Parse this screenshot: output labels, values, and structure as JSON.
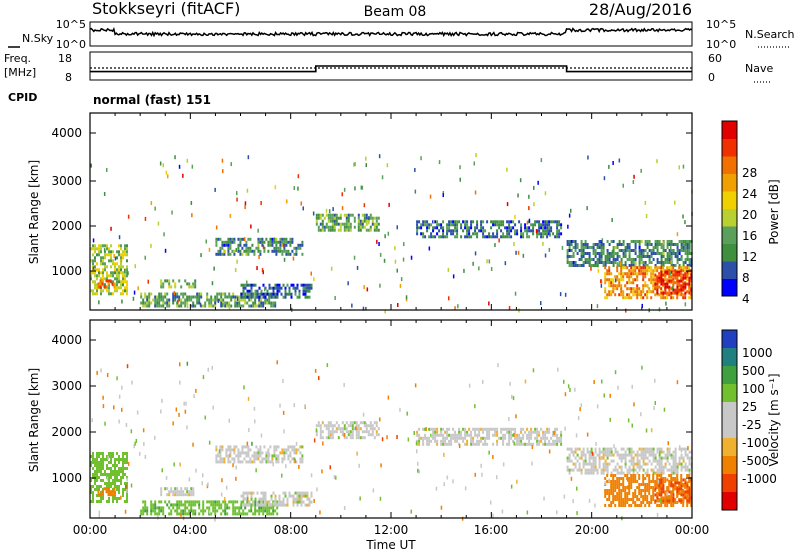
{
  "header": {
    "station": "Stokkseyri (fitACF)",
    "beam": "Beam 08",
    "date": "28/Aug/2016"
  },
  "noise_panel": {
    "left_label": "N.Sky",
    "right_label": "N.Search",
    "left_ticks": [
      "10^5",
      "10^0"
    ],
    "right_ticks": [
      "10^5",
      "10^0"
    ]
  },
  "freq_panel": {
    "left_label_line1": "Freq.",
    "left_label_line2": "[MHz]",
    "right_label": "Nave",
    "left_ticks": [
      "18",
      "8"
    ],
    "right_ticks": [
      "60",
      "0"
    ]
  },
  "cpid": {
    "label": "CPID",
    "value": "normal (fast) 151"
  },
  "x_axis": {
    "label": "Time UT",
    "ticks": [
      "00:00",
      "04:00",
      "08:00",
      "12:00",
      "16:00",
      "20:00",
      "00:00"
    ],
    "range_hours": [
      0,
      24
    ]
  },
  "power_panel": {
    "ylabel": "Slant Range [km]",
    "yticks": [
      "4000",
      "3000",
      "2000",
      "1000"
    ],
    "colorbar_label": "Power [dB]",
    "colorbar_ticks": [
      "28",
      "24",
      "20",
      "16",
      "12",
      "8",
      "4"
    ]
  },
  "velocity_panel": {
    "ylabel": "Slant Range [km]",
    "yticks": [
      "4000",
      "3000",
      "2000",
      "1000"
    ],
    "colorbar_label": "Velocity [m s⁻¹]",
    "colorbar_ticks": [
      "1000",
      "500",
      "100",
      "25",
      "-25",
      "-100",
      "-500",
      "-1000"
    ]
  },
  "colors": {
    "power_scale": [
      "#0000ff",
      "#2c4faa",
      "#3f8f3f",
      "#5aa05a",
      "#b8d030",
      "#f0d000",
      "#f0a000",
      "#f07000",
      "#f03000",
      "#e00000"
    ],
    "velocity_scale": [
      "#2040c0",
      "#208080",
      "#40a040",
      "#70c030",
      "#c8c8c8",
      "#c8c8c8",
      "#f0b030",
      "#f08000",
      "#f04000",
      "#e00000"
    ]
  },
  "chart_data": [
    {
      "type": "heatmap",
      "title": "Power [dB]",
      "xlabel": "Time UT",
      "ylabel": "Slant Range [km]",
      "xlim": [
        0,
        24
      ],
      "ylim": [
        200,
        4700
      ],
      "clim": [
        0,
        32
      ],
      "regions": [
        {
          "t0": 0.0,
          "t1": 1.5,
          "r0": 600,
          "r1": 1700,
          "level": 14
        },
        {
          "t0": 0.3,
          "t1": 1.0,
          "r0": 700,
          "r1": 900,
          "level": 24
        },
        {
          "t0": 2.8,
          "t1": 4.2,
          "r0": 700,
          "r1": 900,
          "level": 12
        },
        {
          "t0": 2.0,
          "t1": 7.5,
          "r0": 300,
          "r1": 600,
          "level": 10
        },
        {
          "t0": 5.0,
          "t1": 8.5,
          "r0": 1500,
          "r1": 1850,
          "level": 8
        },
        {
          "t0": 6.0,
          "t1": 8.8,
          "r0": 500,
          "r1": 800,
          "level": 6
        },
        {
          "t0": 9.0,
          "t1": 11.5,
          "r0": 2000,
          "r1": 2400,
          "level": 10
        },
        {
          "t0": 13.0,
          "t1": 18.8,
          "r0": 1900,
          "r1": 2250,
          "level": 6
        },
        {
          "t0": 19.0,
          "t1": 24.0,
          "r0": 1200,
          "r1": 1800,
          "level": 8
        },
        {
          "t0": 20.5,
          "t1": 24.0,
          "r0": 500,
          "r1": 1200,
          "level": 22
        },
        {
          "t0": 22.5,
          "t1": 24.0,
          "r0": 600,
          "r1": 1100,
          "level": 28
        }
      ]
    },
    {
      "type": "heatmap",
      "title": "Velocity [m s⁻¹]",
      "xlabel": "Time UT",
      "ylabel": "Slant Range [km]",
      "xlim": [
        0,
        24
      ],
      "ylim": [
        200,
        4700
      ],
      "clim": [
        -1000,
        1000
      ],
      "regions": [
        {
          "t0": 0.0,
          "t1": 1.5,
          "r0": 600,
          "r1": 1700,
          "level": 60
        },
        {
          "t0": 0.3,
          "t1": 1.0,
          "r0": 700,
          "r1": 900,
          "level": -300
        },
        {
          "t0": 2.8,
          "t1": 4.2,
          "r0": 700,
          "r1": 900,
          "level": 0
        },
        {
          "t0": 2.0,
          "t1": 7.5,
          "r0": 300,
          "r1": 600,
          "level": 80
        },
        {
          "t0": 5.0,
          "t1": 8.5,
          "r0": 1500,
          "r1": 1850,
          "level": 0
        },
        {
          "t0": 6.0,
          "t1": 8.8,
          "r0": 500,
          "r1": 800,
          "level": 0
        },
        {
          "t0": 9.0,
          "t1": 11.5,
          "r0": 2000,
          "r1": 2400,
          "level": 0
        },
        {
          "t0": 13.0,
          "t1": 18.8,
          "r0": 1900,
          "r1": 2250,
          "level": 0
        },
        {
          "t0": 19.0,
          "t1": 24.0,
          "r0": 1200,
          "r1": 1800,
          "level": 0
        },
        {
          "t0": 20.5,
          "t1": 24.0,
          "r0": 500,
          "r1": 1200,
          "level": -200
        },
        {
          "t0": 22.5,
          "t1": 24.0,
          "r0": 600,
          "r1": 1100,
          "level": -500
        }
      ]
    },
    {
      "type": "line",
      "title": "Freq. [MHz]",
      "x": [
        0,
        9,
        9,
        19,
        19,
        24
      ],
      "series": [
        {
          "values": [
            11,
            11,
            13,
            13,
            11,
            11
          ]
        }
      ]
    }
  ]
}
